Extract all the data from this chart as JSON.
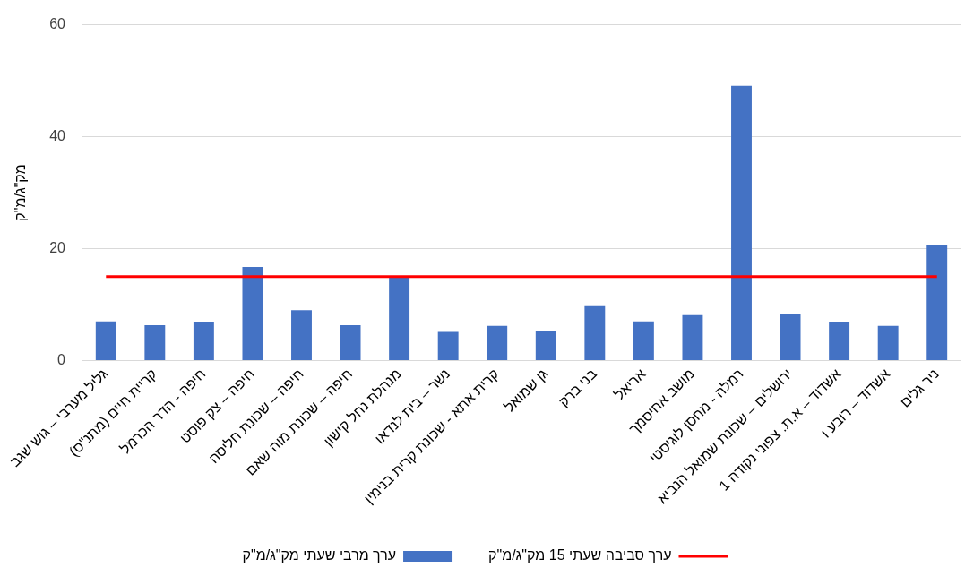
{
  "chart_data": {
    "type": "bar",
    "ylabel": "מק\"ג/מ\"ק",
    "categories": [
      "גליל מערבי – גוש שגב",
      "קריית חיים (מתנ\"ס)",
      "חיפה - הדר הכרמל",
      "חיפה – צק פוסט",
      "חיפה – שכונת חליסה",
      "חיפה – שכונת מוה שאם",
      "מנהלת נחל קישון",
      "נשר – בית לנדאו",
      "קרית אתא - שכונת קרית בנימין",
      "גן שמואל",
      "בני ברק",
      "אריאל",
      "מושב אחיסמך",
      "רמלה - מחסן לוגיסטי",
      "ירושלים – שכונת שמואל הנביא",
      "אשדוד – א.ת. צפוני נקודה 1",
      "אשדוד – רובע ו",
      "ניר גלים"
    ],
    "series": [
      {
        "name": "ערך מרבי שעתי מק\"ג/מ\"ק",
        "color": "#4472c4",
        "values": [
          7.0,
          6.3,
          6.9,
          16.7,
          9.0,
          6.3,
          15.0,
          5.1,
          6.2,
          5.3,
          9.7,
          7.0,
          8.1,
          49.1,
          8.4,
          6.9,
          6.2,
          20.6
        ]
      },
      {
        "name": "ערך סביבה שעתי 15 מק\"ג/מ\"ק",
        "type": "line",
        "color": "#ff0000",
        "values": [
          15,
          15,
          15,
          15,
          15,
          15,
          15,
          15,
          15,
          15,
          15,
          15,
          15,
          15,
          15,
          15,
          15,
          15
        ]
      }
    ],
    "ylim": [
      0,
      60
    ],
    "yticks": [
      0,
      20,
      40,
      60
    ],
    "grid": "y",
    "legend": "bottom"
  }
}
